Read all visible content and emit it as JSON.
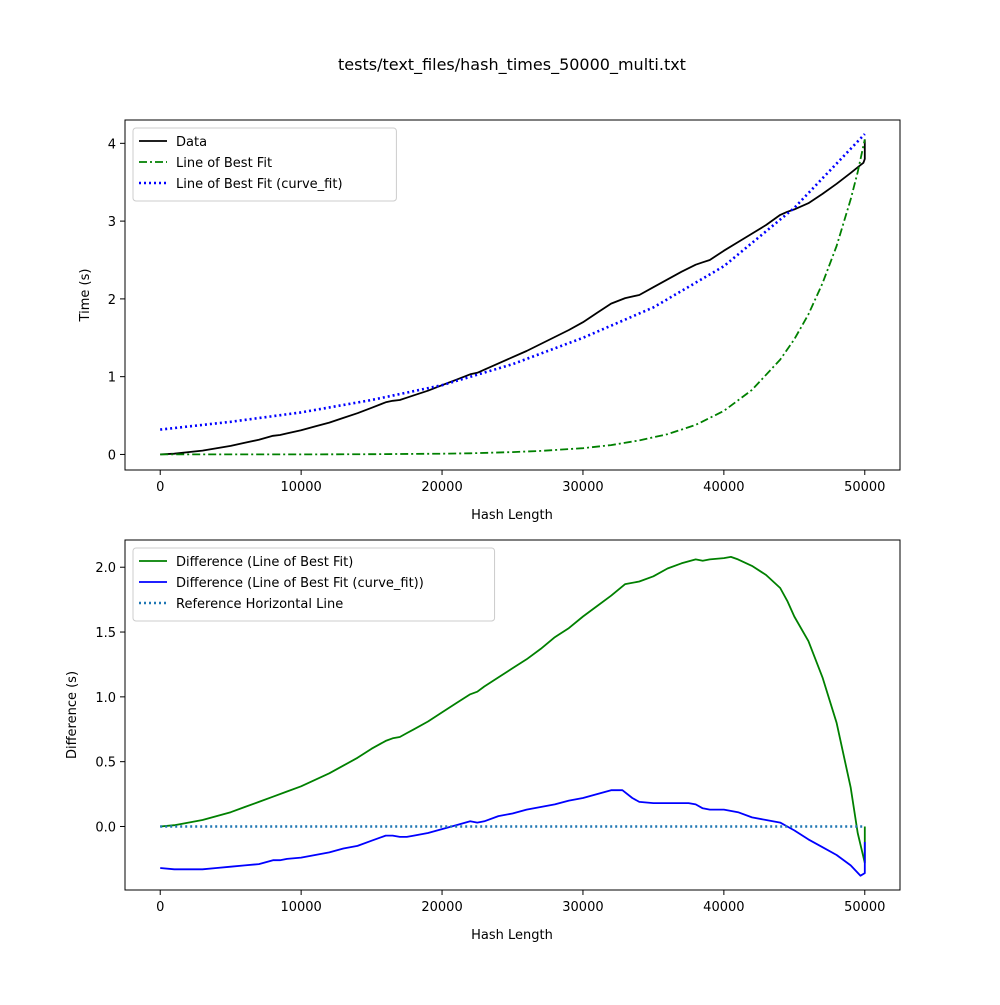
{
  "figure": {
    "title": "tests/text_files/hash_times_50000_multi.txt"
  },
  "chart_data": [
    {
      "type": "line",
      "xlabel": "Hash Length",
      "ylabel": "Time (s)",
      "xlim": [
        -2500,
        52500
      ],
      "ylim": [
        -0.2,
        4.3
      ],
      "xticks": [
        0,
        10000,
        20000,
        30000,
        40000,
        50000
      ],
      "xtick_labels": [
        "0",
        "10000",
        "20000",
        "30000",
        "40000",
        "50000"
      ],
      "yticks": [
        0,
        1,
        2,
        3,
        4
      ],
      "ytick_labels": [
        "0",
        "1",
        "2",
        "3",
        "4"
      ],
      "grid": false,
      "legend_position": "upper-left",
      "series": [
        {
          "name": "Data",
          "color": "#000000",
          "style": "solid",
          "x": [
            0,
            1000,
            2000,
            3000,
            4000,
            5000,
            6000,
            7000,
            8000,
            8500,
            9000,
            10000,
            11000,
            12000,
            13000,
            14000,
            15000,
            16000,
            16500,
            17000,
            17500,
            18000,
            19000,
            20000,
            21000,
            22000,
            22500,
            23000,
            24000,
            25000,
            26000,
            27000,
            28000,
            29000,
            30000,
            31000,
            32000,
            33000,
            34000,
            35000,
            36000,
            37000,
            38000,
            38500,
            39000,
            40000,
            41000,
            42000,
            43000,
            44000,
            44500,
            45000,
            46000,
            47000,
            48000,
            49000,
            49700,
            49900,
            50000,
            50000
          ],
          "y": [
            0.0,
            0.01,
            0.03,
            0.05,
            0.08,
            0.11,
            0.15,
            0.19,
            0.24,
            0.25,
            0.27,
            0.31,
            0.36,
            0.41,
            0.47,
            0.53,
            0.6,
            0.67,
            0.69,
            0.7,
            0.73,
            0.76,
            0.82,
            0.89,
            0.96,
            1.03,
            1.05,
            1.09,
            1.17,
            1.25,
            1.33,
            1.42,
            1.51,
            1.6,
            1.7,
            1.82,
            1.94,
            2.01,
            2.05,
            2.15,
            2.25,
            2.35,
            2.44,
            2.47,
            2.5,
            2.62,
            2.73,
            2.84,
            2.95,
            3.08,
            3.12,
            3.15,
            3.23,
            3.35,
            3.48,
            3.62,
            3.72,
            3.75,
            3.8,
            4.05
          ]
        },
        {
          "name": "Line of Best Fit",
          "color": "#008000",
          "style": "dashdot",
          "x": [
            0,
            5000,
            10000,
            15000,
            20000,
            22000,
            25000,
            27000,
            30000,
            32000,
            34000,
            36000,
            38000,
            40000,
            42000,
            44000,
            45000,
            46000,
            47000,
            48000,
            49000,
            49500,
            50000
          ],
          "y": [
            0.0,
            0.0,
            0.0,
            0.003,
            0.01,
            0.015,
            0.03,
            0.045,
            0.08,
            0.12,
            0.18,
            0.26,
            0.38,
            0.56,
            0.83,
            1.22,
            1.48,
            1.8,
            2.2,
            2.68,
            3.28,
            3.63,
            4.05
          ]
        },
        {
          "name": "Line of Best Fit (curve_fit)",
          "color": "#0000ff",
          "style": "dotted",
          "x": [
            0,
            5000,
            10000,
            15000,
            20000,
            25000,
            30000,
            35000,
            40000,
            45000,
            50000
          ],
          "y": [
            0.32,
            0.42,
            0.54,
            0.7,
            0.89,
            1.16,
            1.5,
            1.89,
            2.42,
            3.17,
            4.12
          ]
        }
      ]
    },
    {
      "type": "line",
      "xlabel": "Hash Length",
      "ylabel": "Difference (s)",
      "xlim": [
        -2500,
        52500
      ],
      "ylim": [
        -0.49,
        2.21
      ],
      "xticks": [
        0,
        10000,
        20000,
        30000,
        40000,
        50000
      ],
      "xtick_labels": [
        "0",
        "10000",
        "20000",
        "30000",
        "40000",
        "50000"
      ],
      "yticks": [
        0.0,
        0.5,
        1.0,
        1.5,
        2.0
      ],
      "ytick_labels": [
        "0.0",
        "0.5",
        "1.0",
        "1.5",
        "2.0"
      ],
      "grid": false,
      "legend_position": "upper-left",
      "series": [
        {
          "name": "Difference (Line of Best Fit)",
          "color": "#008000",
          "style": "solid",
          "x": [
            0,
            1000,
            2000,
            3000,
            4000,
            5000,
            6000,
            7000,
            8000,
            9000,
            10000,
            11000,
            12000,
            13000,
            14000,
            15000,
            16000,
            16500,
            17000,
            17500,
            18000,
            19000,
            20000,
            21000,
            22000,
            22500,
            23000,
            24000,
            25000,
            26000,
            27000,
            28000,
            29000,
            30000,
            31000,
            32000,
            33000,
            34000,
            35000,
            36000,
            37000,
            38000,
            38500,
            39000,
            40000,
            40500,
            41000,
            42000,
            43000,
            44000,
            44500,
            45000,
            46000,
            47000,
            48000,
            49000,
            49500,
            50000,
            50000
          ],
          "y": [
            0.0,
            0.01,
            0.03,
            0.05,
            0.08,
            0.11,
            0.15,
            0.19,
            0.23,
            0.27,
            0.31,
            0.36,
            0.41,
            0.47,
            0.53,
            0.6,
            0.66,
            0.68,
            0.69,
            0.72,
            0.75,
            0.81,
            0.88,
            0.95,
            1.02,
            1.04,
            1.08,
            1.15,
            1.22,
            1.29,
            1.37,
            1.46,
            1.53,
            1.62,
            1.7,
            1.78,
            1.87,
            1.89,
            1.93,
            1.99,
            2.03,
            2.06,
            2.05,
            2.06,
            2.07,
            2.08,
            2.06,
            2.01,
            1.94,
            1.84,
            1.74,
            1.62,
            1.43,
            1.15,
            0.8,
            0.3,
            -0.05,
            -0.28,
            0.0
          ]
        },
        {
          "name": "Difference (Line of Best Fit (curve_fit))",
          "color": "#0000ff",
          "style": "solid",
          "x": [
            0,
            1000,
            2000,
            3000,
            4000,
            5000,
            6000,
            7000,
            8000,
            8500,
            9000,
            10000,
            11000,
            12000,
            13000,
            14000,
            15000,
            16000,
            16500,
            17000,
            17500,
            18000,
            19000,
            20000,
            21000,
            22000,
            22500,
            23000,
            24000,
            25000,
            26000,
            27000,
            28000,
            29000,
            30000,
            31000,
            32000,
            32800,
            33500,
            34000,
            35000,
            36000,
            37000,
            37500,
            38000,
            38500,
            39000,
            40000,
            41000,
            42000,
            43000,
            44000,
            44500,
            45000,
            46000,
            47000,
            48000,
            49000,
            49700,
            50000,
            50000
          ],
          "y": [
            -0.32,
            -0.33,
            -0.33,
            -0.33,
            -0.32,
            -0.31,
            -0.3,
            -0.29,
            -0.26,
            -0.26,
            -0.25,
            -0.24,
            -0.22,
            -0.2,
            -0.17,
            -0.15,
            -0.11,
            -0.07,
            -0.07,
            -0.08,
            -0.08,
            -0.07,
            -0.05,
            -0.02,
            0.01,
            0.04,
            0.03,
            0.04,
            0.08,
            0.1,
            0.13,
            0.15,
            0.17,
            0.2,
            0.22,
            0.25,
            0.28,
            0.28,
            0.22,
            0.19,
            0.18,
            0.18,
            0.18,
            0.18,
            0.17,
            0.14,
            0.13,
            0.13,
            0.11,
            0.07,
            0.05,
            0.03,
            0.0,
            -0.03,
            -0.1,
            -0.16,
            -0.22,
            -0.3,
            -0.38,
            -0.36,
            -0.12
          ]
        },
        {
          "name": "Reference Horizontal Line",
          "color": "#1f77b4",
          "style": "dotted",
          "x": [
            0,
            50000
          ],
          "y": [
            0.0,
            0.0
          ]
        }
      ]
    }
  ]
}
